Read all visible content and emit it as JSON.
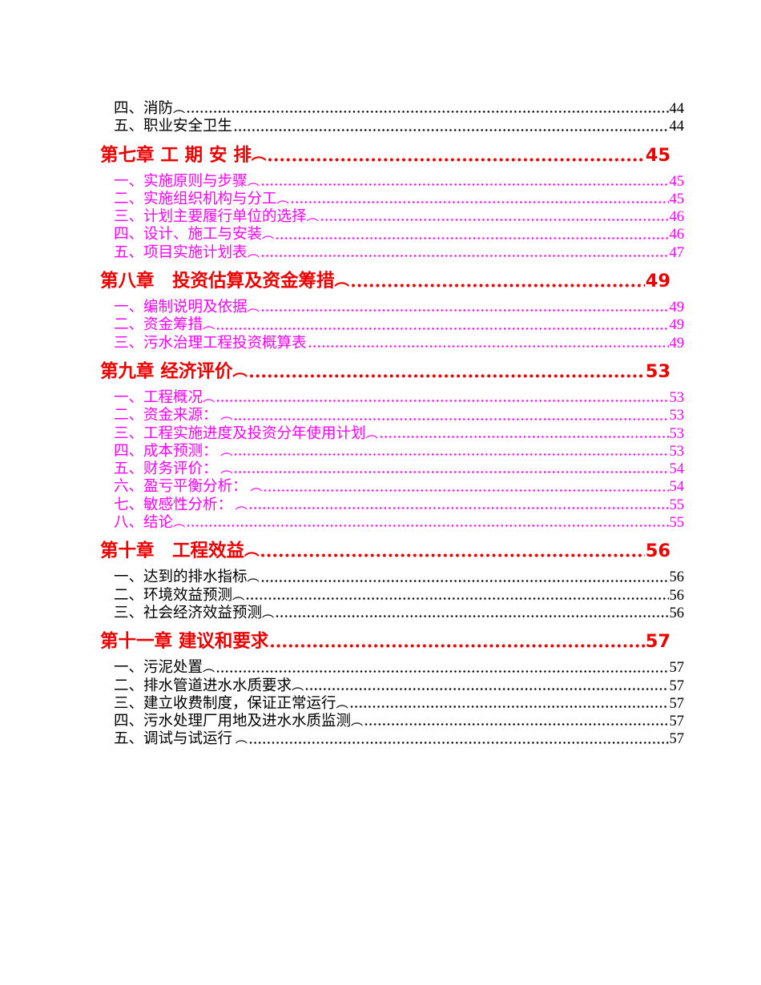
{
  "document": {
    "kind": "table-of-contents-page",
    "background": "#ffffff"
  },
  "colors": {
    "chapter_red": "#ee0000",
    "item_magenta": "#ff00ff",
    "item_black": "#000000"
  },
  "toc": {
    "entries": [
      {
        "kind": "item",
        "text": "四、消防",
        "suffix": "︵",
        "page": "44",
        "color": "black"
      },
      {
        "kind": "item",
        "text": "五、职业安全卫生",
        "suffix": "",
        "page": "44",
        "color": "black"
      },
      {
        "kind": "chapter",
        "text": "第七章 工 期 安 排",
        "suffix": "︵",
        "page": "45",
        "color": "red"
      },
      {
        "kind": "item",
        "text": "一、实施原则与步骤",
        "suffix": "︵",
        "page": "45",
        "color": "magenta"
      },
      {
        "kind": "item",
        "text": "二、实施组织机构与分工",
        "suffix": "︵",
        "page": "45",
        "color": "magenta"
      },
      {
        "kind": "item",
        "text": "三、计划主要履行单位的选择",
        "suffix": "︵",
        "page": "46",
        "color": "magenta"
      },
      {
        "kind": "item",
        "text": "四、设计、施工与安装",
        "suffix": "︵",
        "page": "46",
        "color": "magenta"
      },
      {
        "kind": "item",
        "text": "五、项目实施计划表",
        "suffix": "︵",
        "page": "47",
        "color": "magenta"
      },
      {
        "kind": "chapter",
        "text": "第八章　投资估算及资金筹措",
        "suffix": "︵",
        "page": "49",
        "color": "red"
      },
      {
        "kind": "item",
        "text": "一、编制说明及依据",
        "suffix": "︵",
        "page": "49",
        "color": "magenta"
      },
      {
        "kind": "item",
        "text": "二、资金筹措",
        "suffix": "︵",
        "page": "49",
        "color": "magenta"
      },
      {
        "kind": "item",
        "text": "三、污水治理工程投资概算表",
        "suffix": "",
        "page": "49",
        "color": "magenta"
      },
      {
        "kind": "chapter",
        "text": "第九章 经济评价",
        "suffix": "︵",
        "page": "53",
        "color": "red"
      },
      {
        "kind": "item",
        "text": "一、工程概况",
        "suffix": "︵",
        "page": "53",
        "color": "magenta"
      },
      {
        "kind": "item",
        "text": "二、资金来源：",
        "suffix": " ︵",
        "page": "53",
        "color": "magenta"
      },
      {
        "kind": "item",
        "text": "三、工程实施进度及投资分年使用计划",
        "suffix": "︵",
        "page": "53",
        "color": "magenta"
      },
      {
        "kind": "item",
        "text": "四、成本预测：",
        "suffix": " ︵",
        "page": "53",
        "color": "magenta"
      },
      {
        "kind": "item",
        "text": "五、财务评价：",
        "suffix": " ︵",
        "page": "54",
        "color": "magenta"
      },
      {
        "kind": "item",
        "text": "六、盈亏平衡分析：",
        "suffix": " ︵",
        "page": "54",
        "color": "magenta"
      },
      {
        "kind": "item",
        "text": "七、敏感性分析：",
        "suffix": " ︵",
        "page": "55",
        "color": "magenta"
      },
      {
        "kind": "item",
        "text": "八、结论",
        "suffix": "︵",
        "page": "55",
        "color": "magenta"
      },
      {
        "kind": "chapter",
        "text": "第十章　工程效益",
        "suffix": "︵",
        "page": "56",
        "color": "red"
      },
      {
        "kind": "item",
        "text": "一、达到的排水指标",
        "suffix": "︵",
        "page": "56",
        "color": "black"
      },
      {
        "kind": "item",
        "text": "二、环境效益预测",
        "suffix": "︵",
        "page": "56",
        "color": "black"
      },
      {
        "kind": "item",
        "text": "三、社会经济效益预测",
        "suffix": "︵",
        "page": "56",
        "color": "black"
      },
      {
        "kind": "chapter",
        "text": "第十一章 建议和要求",
        "suffix": "",
        "page": "57",
        "color": "red"
      },
      {
        "kind": "item",
        "text": "一、污泥处置",
        "suffix": "︵",
        "page": "57",
        "color": "black"
      },
      {
        "kind": "item",
        "text": "二、排水管道进水水质要求",
        "suffix": "︵",
        "page": "57",
        "color": "black"
      },
      {
        "kind": "item",
        "text": "三、建立收费制度，保证正常运行",
        "suffix": "︵",
        "page": "57",
        "color": "black"
      },
      {
        "kind": "item",
        "text": "四、污水处理厂用地及进水水质监测",
        "suffix": "︵",
        "page": "57",
        "color": "black"
      },
      {
        "kind": "item",
        "text": "五、调试与试运行",
        "suffix": " ︵",
        "page": "57",
        "color": "black"
      }
    ]
  }
}
